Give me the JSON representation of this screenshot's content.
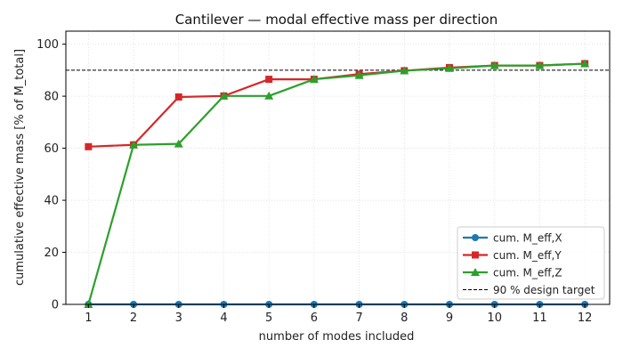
{
  "chart_data": {
    "type": "line",
    "title": "Cantilever — modal effective mass per direction",
    "xlabel": "number of modes included",
    "ylabel": "cumulative effective mass  [% of M_total]",
    "x": [
      1,
      2,
      3,
      4,
      5,
      6,
      7,
      8,
      9,
      10,
      11,
      12
    ],
    "xlim": [
      0.5,
      12.55
    ],
    "ylim": [
      0,
      105
    ],
    "yticks": [
      0,
      20,
      40,
      60,
      80,
      100
    ],
    "grid": true,
    "legend_position": "lower-right",
    "series": [
      {
        "name": "cum. M_eff,X",
        "color": "#1f77b4",
        "marker": "circle",
        "values": [
          0,
          0,
          0,
          0,
          0,
          0,
          0,
          0,
          0,
          0,
          0,
          0
        ]
      },
      {
        "name": "cum. M_eff,Y",
        "color": "#d62728",
        "marker": "square",
        "values": [
          60.6,
          61.3,
          79.7,
          80.1,
          86.5,
          86.5,
          88.5,
          89.8,
          91.0,
          91.8,
          91.8,
          92.5
        ]
      },
      {
        "name": "cum. M_eff,Z",
        "color": "#2ca02c",
        "marker": "triangle",
        "values": [
          0,
          61.3,
          61.7,
          80.1,
          80.1,
          86.5,
          88.0,
          89.8,
          90.7,
          91.8,
          91.8,
          92.5
        ]
      }
    ],
    "reference_line": {
      "name": "90 % design target",
      "value": 90,
      "color": "#000000",
      "style": "dashed"
    }
  }
}
